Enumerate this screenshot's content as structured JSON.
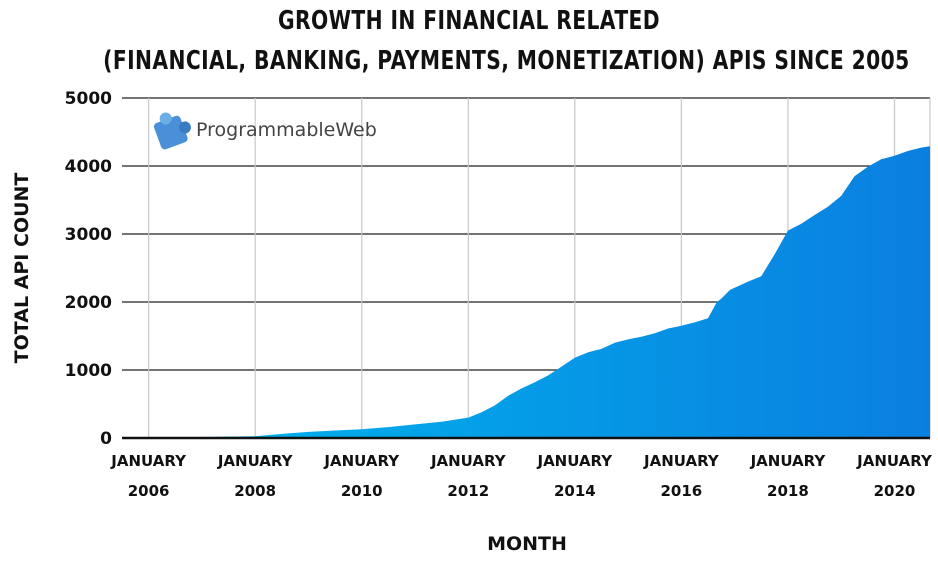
{
  "chart_data": {
    "type": "area",
    "title": "GROWTH IN FINANCIAL RELATED",
    "subtitle": "(FINANCIAL, BANKING, PAYMENTS, MONETIZATION) APIS SINCE 2005",
    "xlabel": "MONTH",
    "ylabel": "TOTAL API COUNT",
    "ylim": [
      0,
      5000
    ],
    "yticks": [
      0,
      1000,
      2000,
      3000,
      4000,
      5000
    ],
    "xlim": [
      "2005-07",
      "2020-09"
    ],
    "xticks": [
      {
        "date": "2006-01",
        "line1": "JANUARY",
        "line2": "2006"
      },
      {
        "date": "2008-01",
        "line1": "JANUARY",
        "line2": "2008"
      },
      {
        "date": "2010-01",
        "line1": "JANUARY",
        "line2": "2010"
      },
      {
        "date": "2012-01",
        "line1": "JANUARY",
        "line2": "2012"
      },
      {
        "date": "2014-01",
        "line1": "JANUARY",
        "line2": "2014"
      },
      {
        "date": "2016-01",
        "line1": "JANUARY",
        "line2": "2016"
      },
      {
        "date": "2018-01",
        "line1": "JANUARY",
        "line2": "2018"
      },
      {
        "date": "2020-01",
        "line1": "JANUARY",
        "line2": "2020"
      }
    ],
    "grid": true,
    "colors": {
      "area_start": "#00b8ee",
      "area_end": "#0a7fe0"
    },
    "series": [
      {
        "x": [
          "2005-07",
          "2006-01",
          "2007-01",
          "2008-01",
          "2008-07",
          "2009-01",
          "2009-07",
          "2010-01",
          "2010-07",
          "2011-01",
          "2011-07",
          "2012-01",
          "2012-04",
          "2012-07",
          "2012-10",
          "2013-01",
          "2013-04",
          "2013-07",
          "2013-10",
          "2014-01",
          "2014-04",
          "2014-07",
          "2014-10",
          "2015-01",
          "2015-04",
          "2015-07",
          "2015-10",
          "2016-01",
          "2016-04",
          "2016-07",
          "2016-09",
          "2016-10",
          "2016-12",
          "2017-04",
          "2017-07",
          "2017-10",
          "2018-01",
          "2018-04",
          "2018-07",
          "2018-10",
          "2019-01",
          "2019-04",
          "2019-07",
          "2019-10",
          "2020-01",
          "2020-04",
          "2020-07",
          "2020-09"
        ],
        "y": [
          0,
          5,
          15,
          25,
          60,
          90,
          110,
          130,
          160,
          200,
          240,
          300,
          380,
          480,
          620,
          730,
          820,
          920,
          1050,
          1180,
          1260,
          1310,
          1400,
          1450,
          1490,
          1540,
          1610,
          1650,
          1700,
          1760,
          2000,
          2050,
          2180,
          2300,
          2380,
          2700,
          3050,
          3150,
          3280,
          3400,
          3560,
          3850,
          3990,
          4100,
          4150,
          4220,
          4270,
          4290
        ]
      }
    ]
  },
  "logo": {
    "text": "ProgrammableWeb",
    "icon": "puzzle-piece-icon"
  }
}
